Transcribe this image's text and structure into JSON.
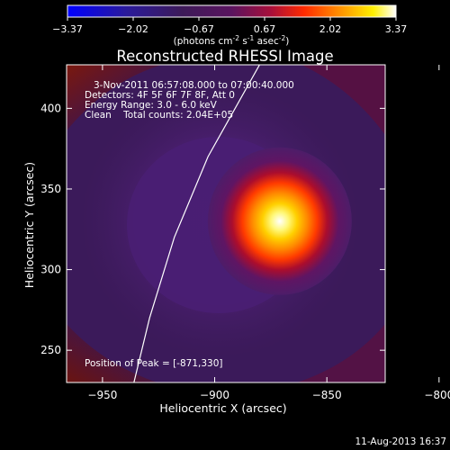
{
  "colorbar": {
    "ticks": [
      "-3.37",
      "-2.02",
      "-0.67",
      "0.67",
      "2.02",
      "3.37"
    ],
    "units_prefix": "(photons cm",
    "units_exp1": "-2",
    "units_mid": " s",
    "units_exp2": "-1",
    "units_mid2": " asec",
    "units_exp3": "-2",
    "units_suffix": ")"
  },
  "footer": {
    "timestamp": "11-Aug-2013 16:37"
  },
  "chart_data": {
    "type": "heatmap",
    "title": "Reconstructed RHESSI Image",
    "xlabel": "Heliocentric X (arcsec)",
    "ylabel": "Heliocentric Y (arcsec)",
    "xlim": [
      -966,
      -824
    ],
    "ylim": [
      230,
      427
    ],
    "x_ticks": [
      -950,
      -900,
      -850,
      -800
    ],
    "y_ticks": [
      250,
      300,
      350,
      400
    ],
    "colormap": "heat (black-purple-red-orange-yellow-white)",
    "peak": {
      "x": -871,
      "y": 330
    },
    "annotations": [
      "3-Nov-2011 06:57:08.000 to 07:00:40.000",
      "Detectors: 4F 5F 6F 7F 8F, Att 0",
      "Energy Range: 3.0 - 6.0 keV",
      "Clean    Total counts: 2.04E+05"
    ],
    "peak_label": "Position of Peak = [-871,330]",
    "limb_line": [
      [
        -936,
        230
      ],
      [
        -929,
        270
      ],
      [
        -918,
        320
      ],
      [
        -903,
        370
      ],
      [
        -880,
        427
      ]
    ]
  }
}
